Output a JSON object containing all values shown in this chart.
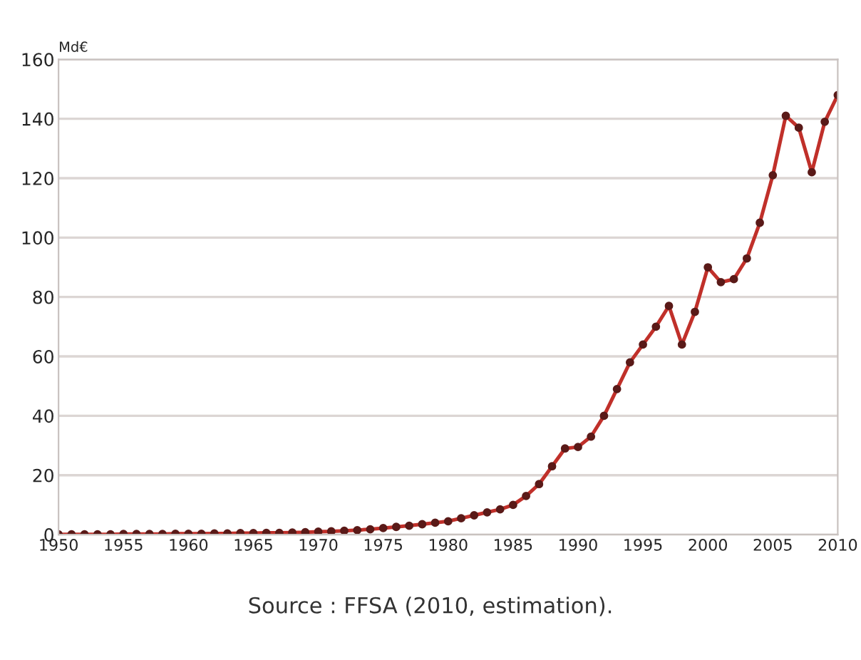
{
  "chart_data": {
    "type": "line",
    "ylabel": "Md€",
    "x": [
      1950,
      1951,
      1952,
      1953,
      1954,
      1955,
      1956,
      1957,
      1958,
      1959,
      1960,
      1961,
      1962,
      1963,
      1964,
      1965,
      1966,
      1967,
      1968,
      1969,
      1970,
      1971,
      1972,
      1973,
      1974,
      1975,
      1976,
      1977,
      1978,
      1979,
      1980,
      1981,
      1982,
      1983,
      1984,
      1985,
      1986,
      1987,
      1988,
      1989,
      1990,
      1991,
      1992,
      1993,
      1994,
      1995,
      1996,
      1997,
      1998,
      1999,
      2000,
      2001,
      2002,
      2003,
      2004,
      2005,
      2006,
      2007,
      2008,
      2009,
      2010
    ],
    "series": [
      {
        "color": "#c0302a",
        "values": [
          0.1,
          0.1,
          0.1,
          0.1,
          0.1,
          0.2,
          0.2,
          0.2,
          0.2,
          0.3,
          0.3,
          0.3,
          0.4,
          0.4,
          0.5,
          0.5,
          0.6,
          0.6,
          0.7,
          0.8,
          1,
          1.1,
          1.3,
          1.5,
          1.8,
          2.2,
          2.6,
          3,
          3.5,
          4,
          4.5,
          5.5,
          6.5,
          7.5,
          8.5,
          10,
          13,
          17,
          23,
          29,
          29.5,
          33,
          40,
          49,
          58,
          64,
          70,
          77,
          64,
          75,
          90,
          85,
          86,
          93,
          105,
          121,
          141,
          137,
          122,
          139,
          148
        ]
      }
    ],
    "xlim": [
      1950,
      2010
    ],
    "xticks": [
      1950,
      1955,
      1960,
      1965,
      1970,
      1975,
      1980,
      1985,
      1990,
      1995,
      2000,
      2005,
      2010
    ],
    "ylim": [
      0,
      160
    ],
    "yticks": [
      0,
      20,
      40,
      60,
      80,
      100,
      120,
      140,
      160
    ],
    "grid": "y",
    "marker": "circle",
    "line_style": "solid",
    "annotations": [
      "Source : FFSA (2010, estimation)."
    ]
  }
}
